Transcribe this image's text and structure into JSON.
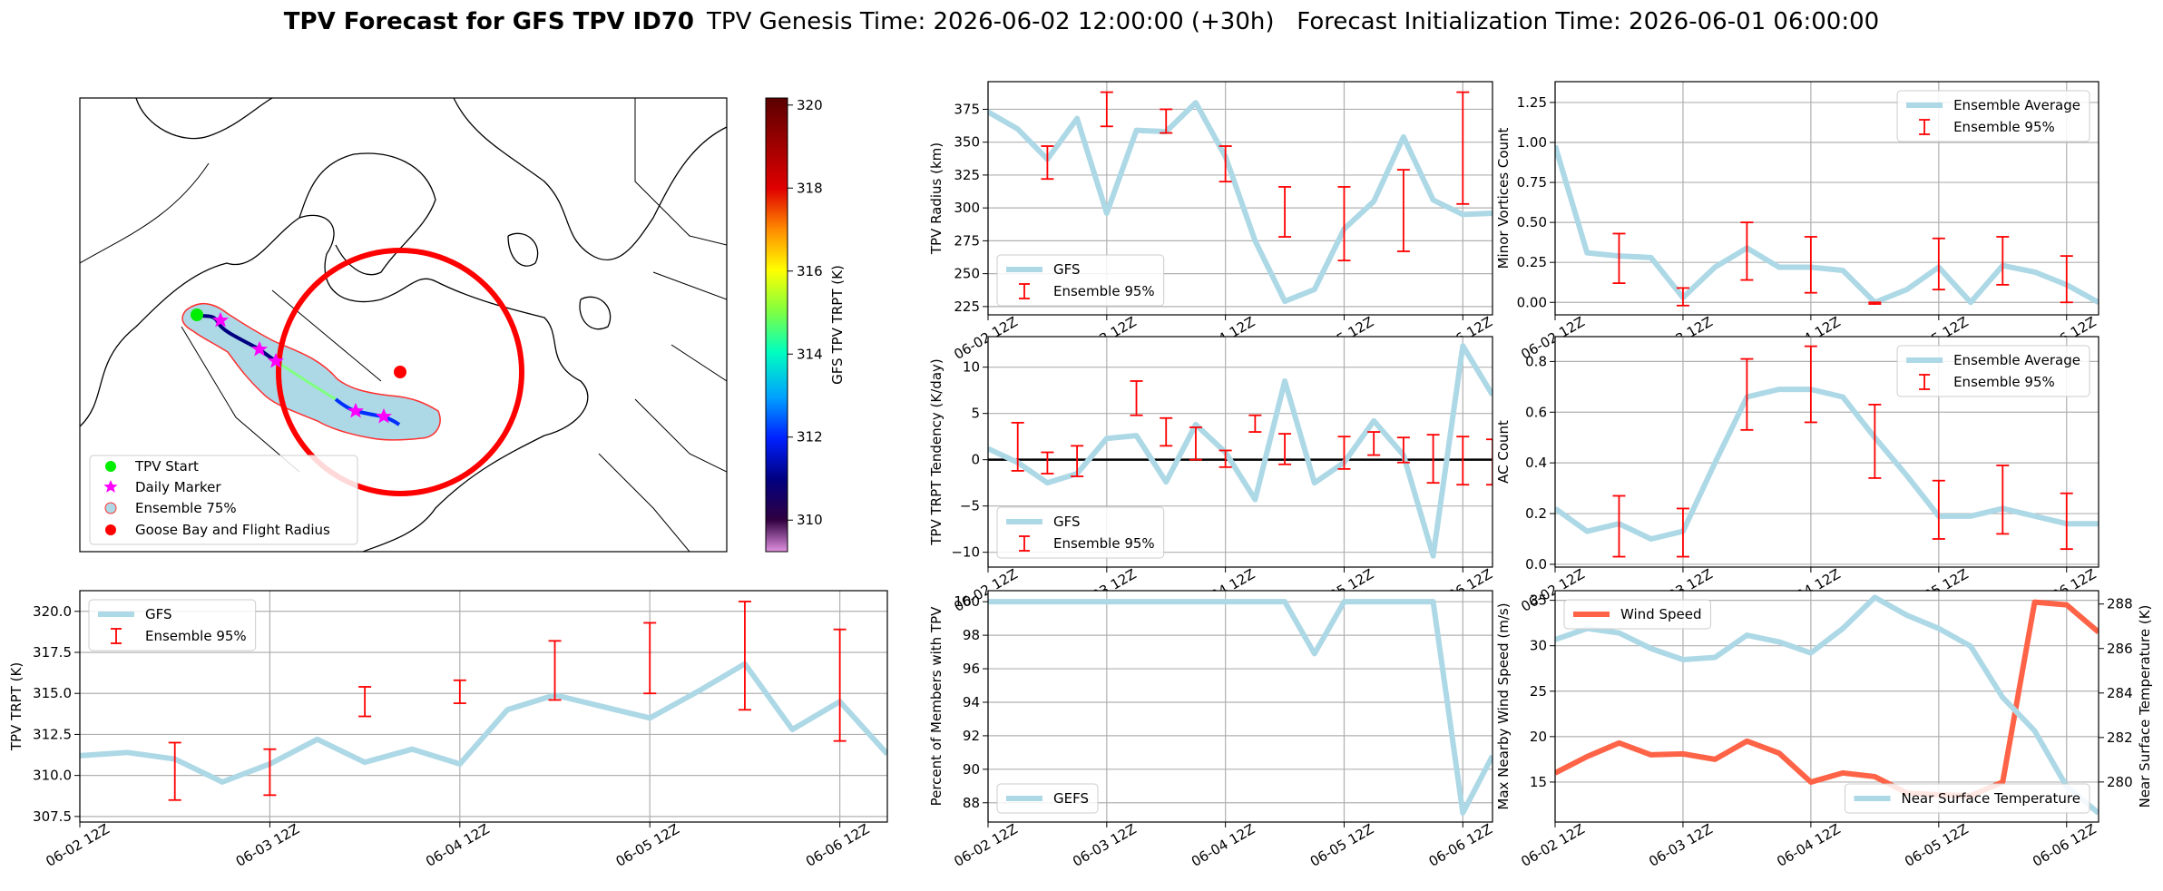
{
  "title": {
    "bold": "TPV Forecast for GFS TPV ID70",
    "rest": "TPV Genesis Time: 2026-06-02 12:00:00 (+30h)   Forecast Initialization Time: 2026-06-01 06:00:00"
  },
  "map": {
    "legend": [
      "TPV Start",
      "Daily Marker",
      "Ensemble 75%",
      "Goose Bay and Flight Radius"
    ],
    "colorbar": {
      "label": "GFS TPV TRPT (K)",
      "lim": [
        309.24,
        320.17
      ],
      "ticks": [
        310,
        312,
        314,
        316,
        318,
        320
      ]
    }
  },
  "chart_data": [
    {
      "type": "line",
      "ylabel": "TPV Radius (km)",
      "grid": true,
      "legend": "lower left",
      "x": [
        0,
        6,
        12,
        18,
        24,
        30,
        36,
        42,
        48,
        54,
        60,
        66,
        72,
        78,
        84,
        90,
        96,
        102
      ],
      "xlim": [
        0,
        102
      ],
      "xticks": [
        {
          "value": 0,
          "label": "06-02 12Z"
        },
        {
          "value": 24,
          "label": "06-03 12Z"
        },
        {
          "value": 48,
          "label": "06-04 12Z"
        },
        {
          "value": 72,
          "label": "06-05 12Z"
        },
        {
          "value": 96,
          "label": "06-06 12Z"
        }
      ],
      "ylim": [
        218.7,
        396
      ],
      "yticks": [
        225,
        250,
        275,
        300,
        325,
        350,
        375
      ],
      "series": [
        {
          "name": "GFS",
          "color": "#add8e6",
          "values": [
            373,
            360,
            337,
            368,
            296,
            359,
            358,
            380,
            339,
            275,
            229,
            238,
            284,
            305,
            354,
            306,
            295,
            296
          ]
        }
      ],
      "errorbars": {
        "name": "Ensemble 95%",
        "color": "#ff0000",
        "x": [
          12,
          24,
          36,
          48,
          60,
          72,
          84,
          96
        ],
        "low": [
          322,
          362,
          357,
          320,
          278,
          260,
          267,
          303
        ],
        "high": [
          347,
          388,
          375,
          347,
          316,
          316,
          329,
          388
        ]
      }
    },
    {
      "type": "line",
      "ylabel": "TPV TRPT Tendency (K/day)",
      "grid": true,
      "legend": "lower left",
      "hline": 0,
      "x": [
        0,
        6,
        12,
        18,
        24,
        30,
        36,
        42,
        48,
        54,
        60,
        66,
        72,
        78,
        84,
        90,
        96,
        102
      ],
      "xlim": [
        0,
        102
      ],
      "xticks": [
        {
          "value": 0,
          "label": "06-02 12Z"
        },
        {
          "value": 24,
          "label": "06-03 12Z"
        },
        {
          "value": 48,
          "label": "06-04 12Z"
        },
        {
          "value": 72,
          "label": "06-05 12Z"
        },
        {
          "value": 96,
          "label": "06-06 12Z"
        }
      ],
      "ylim": [
        -11.6,
        13.3
      ],
      "yticks": [
        {
          "value": -10,
          "label": "−10"
        },
        {
          "value": -5,
          "label": "−5"
        },
        0,
        5,
        10
      ],
      "series": [
        {
          "name": "GFS",
          "color": "#add8e6",
          "values": [
            1.2,
            -0.3,
            -2.5,
            -1.5,
            2.3,
            2.6,
            -2.4,
            3.8,
            0.8,
            -4.3,
            8.5,
            -2.5,
            -0.3,
            4.2,
            0.5,
            -10.4,
            12.3,
            7.0
          ]
        }
      ],
      "errorbars": {
        "name": "Ensemble 95%",
        "color": "#ff0000",
        "x": [
          6,
          12,
          18,
          30,
          36,
          42,
          48,
          54,
          60,
          72,
          78,
          84,
          90,
          96,
          102
        ],
        "low": [
          -1.2,
          -1.5,
          -1.8,
          4.8,
          1.5,
          0,
          -0.8,
          3.0,
          -0.5,
          -1.0,
          0.5,
          -0.3,
          -2.5,
          -2.7,
          -2.7
        ],
        "high": [
          4.0,
          0.8,
          1.5,
          8.5,
          4.5,
          3.5,
          1.0,
          4.8,
          2.8,
          2.5,
          3.0,
          2.4,
          2.7,
          2.5,
          2.2
        ]
      }
    },
    {
      "type": "line",
      "ylabel": "Percent of Members with TPV",
      "grid": true,
      "legend": "lower left",
      "x": [
        0,
        6,
        12,
        18,
        24,
        30,
        36,
        42,
        48,
        54,
        60,
        66,
        72,
        78,
        84,
        90,
        96,
        102
      ],
      "xlim": [
        0,
        102
      ],
      "xticks": [
        {
          "value": 0,
          "label": "06-02 12Z"
        },
        {
          "value": 24,
          "label": "06-03 12Z"
        },
        {
          "value": 48,
          "label": "06-04 12Z"
        },
        {
          "value": 72,
          "label": "06-05 12Z"
        },
        {
          "value": 96,
          "label": "06-06 12Z"
        }
      ],
      "ylim": [
        86.85,
        100.66
      ],
      "yticks": [
        88,
        90,
        92,
        94,
        96,
        98,
        100
      ],
      "series": [
        {
          "name": "GEFS",
          "color": "#add8e6",
          "values": [
            100,
            100,
            100,
            100,
            100,
            100,
            100,
            100,
            100,
            100,
            100,
            96.9,
            100,
            100,
            100,
            100,
            87.4,
            90.8
          ]
        }
      ]
    },
    {
      "type": "line",
      "ylabel": "Minor Vortices Count",
      "grid": true,
      "legend": "upper right",
      "x": [
        0,
        6,
        12,
        18,
        24,
        30,
        36,
        42,
        48,
        54,
        60,
        66,
        72,
        78,
        84,
        90,
        96,
        102
      ],
      "xlim": [
        0,
        102
      ],
      "xticks": [
        {
          "value": 0,
          "label": "06-02 12Z"
        },
        {
          "value": 24,
          "label": "06-03 12Z"
        },
        {
          "value": 48,
          "label": "06-04 12Z"
        },
        {
          "value": 72,
          "label": "06-05 12Z"
        },
        {
          "value": 96,
          "label": "06-06 12Z"
        }
      ],
      "ylim": [
        -0.078,
        1.38
      ],
      "yticks": [
        {
          "value": 0,
          "label": "0.00"
        },
        {
          "value": 0.25,
          "label": "0.25"
        },
        {
          "value": 0.5,
          "label": "0.50"
        },
        {
          "value": 0.75,
          "label": "0.75"
        },
        {
          "value": 1,
          "label": "1.00"
        },
        {
          "value": 1.25,
          "label": "1.25"
        }
      ],
      "series": [
        {
          "name": "Ensemble Average",
          "color": "#add8e6",
          "values": [
            0.98,
            0.31,
            0.29,
            0.28,
            0.03,
            0.22,
            0.34,
            0.22,
            0.22,
            0.2,
            0.0,
            0.08,
            0.22,
            0.0,
            0.23,
            0.19,
            0.11,
            0.0
          ]
        }
      ],
      "errorbars": {
        "name": "Ensemble 95%",
        "color": "#ff0000",
        "x": [
          12,
          24,
          36,
          48,
          60,
          72,
          84,
          96
        ],
        "low": [
          0.12,
          -0.02,
          0.14,
          0.06,
          -0.01,
          0.08,
          0.11,
          0.0
        ],
        "high": [
          0.43,
          0.09,
          0.5,
          0.41,
          0.0,
          0.4,
          0.41,
          0.29
        ]
      }
    },
    {
      "type": "line",
      "ylabel": "AC Count",
      "grid": true,
      "legend": "upper right",
      "x": [
        0,
        6,
        12,
        18,
        24,
        30,
        36,
        42,
        48,
        54,
        60,
        66,
        72,
        78,
        84,
        90,
        96,
        102
      ],
      "xlim": [
        0,
        102
      ],
      "xticks": [
        {
          "value": 0,
          "label": "06-02 12Z"
        },
        {
          "value": 24,
          "label": "06-03 12Z"
        },
        {
          "value": 48,
          "label": "06-04 12Z"
        },
        {
          "value": 72,
          "label": "06-05 12Z"
        },
        {
          "value": 96,
          "label": "06-06 12Z"
        }
      ],
      "ylim": [
        -0.011,
        0.898
      ],
      "yticks": [
        {
          "value": 0,
          "label": "0.0"
        },
        {
          "value": 0.2,
          "label": "0.2"
        },
        {
          "value": 0.4,
          "label": "0.4"
        },
        {
          "value": 0.6,
          "label": "0.6"
        },
        {
          "value": 0.8,
          "label": "0.8"
        }
      ],
      "series": [
        {
          "name": "Ensemble Average",
          "color": "#add8e6",
          "values": [
            0.22,
            0.13,
            0.16,
            0.1,
            0.13,
            0.4,
            0.66,
            0.69,
            0.69,
            0.66,
            0.5,
            0.35,
            0.19,
            0.19,
            0.22,
            0.19,
            0.16,
            0.16
          ]
        }
      ],
      "errorbars": {
        "name": "Ensemble 95%",
        "color": "#ff0000",
        "x": [
          12,
          24,
          36,
          48,
          60,
          72,
          84,
          96
        ],
        "low": [
          0.03,
          0.03,
          0.53,
          0.56,
          0.34,
          0.1,
          0.12,
          0.06
        ],
        "high": [
          0.27,
          0.22,
          0.81,
          0.86,
          0.63,
          0.33,
          0.39,
          0.28
        ]
      }
    },
    {
      "type": "line",
      "ylabel": "Max Nearby Wind Speed (m/s)",
      "y2label": "Near Surface Temperature (K)",
      "ylabel_color": "#ff6347",
      "y2label_color": "#4169e1",
      "grid": true,
      "legend": "upper left",
      "y2legend": "lower right",
      "x": [
        0,
        6,
        12,
        18,
        24,
        30,
        36,
        42,
        48,
        54,
        60,
        66,
        72,
        78,
        84,
        90,
        96,
        102
      ],
      "xlim": [
        0,
        102
      ],
      "xticks": [
        {
          "value": 0,
          "label": "06-02 12Z"
        },
        {
          "value": 24,
          "label": "06-03 12Z"
        },
        {
          "value": 48,
          "label": "06-04 12Z"
        },
        {
          "value": 72,
          "label": "06-05 12Z"
        },
        {
          "value": 96,
          "label": "06-06 12Z"
        }
      ],
      "ylim": [
        10.6,
        36.06
      ],
      "yticks": [
        15,
        20,
        25,
        30,
        35
      ],
      "y2lim": [
        278.2,
        288.6
      ],
      "y2ticks": [
        280,
        282,
        284,
        286,
        288
      ],
      "series": [
        {
          "name": "Wind Speed",
          "color": "#ff6347",
          "values": [
            16.0,
            17.8,
            19.3,
            18.0,
            18.1,
            17.5,
            19.5,
            18.2,
            15.0,
            16.0,
            15.6,
            13.8,
            13.6,
            13.5,
            15.0,
            34.8,
            34.5,
            31.5
          ]
        },
        {
          "name": "Near Surface Temperature",
          "color": "#add8e6",
          "axis": "y2",
          "values": [
            286.4,
            286.9,
            286.7,
            286.0,
            285.5,
            285.6,
            286.6,
            286.3,
            285.8,
            286.9,
            288.3,
            287.5,
            286.9,
            286.1,
            283.8,
            282.3,
            279.8,
            278.6
          ]
        }
      ]
    },
    {
      "type": "line",
      "ylabel": "TPV TRPT (K)",
      "grid": true,
      "legend": "upper left",
      "x": [
        0,
        6,
        12,
        18,
        24,
        30,
        36,
        42,
        48,
        54,
        60,
        66,
        72,
        78,
        84,
        90,
        96,
        102
      ],
      "xlim": [
        0,
        102
      ],
      "xticks": [
        {
          "value": 0,
          "label": "06-02 12Z"
        },
        {
          "value": 24,
          "label": "06-03 12Z"
        },
        {
          "value": 48,
          "label": "06-04 12Z"
        },
        {
          "value": 72,
          "label": "06-05 12Z"
        },
        {
          "value": 96,
          "label": "06-06 12Z"
        }
      ],
      "ylim": [
        307.16,
        321.26
      ],
      "yticks": [
        307.5,
        {
          "value": 310,
          "label": "310.0"
        },
        312.5,
        {
          "value": 315,
          "label": "315.0"
        },
        317.5,
        {
          "value": 320,
          "label": "320.0"
        }
      ],
      "series": [
        {
          "name": "GFS",
          "color": "#add8e6",
          "values": [
            311.2,
            311.4,
            311.0,
            309.6,
            310.7,
            312.2,
            310.8,
            311.6,
            310.7,
            314.0,
            314.9,
            314.2,
            313.5,
            315.1,
            316.8,
            312.8,
            314.5,
            311.3
          ]
        }
      ],
      "errorbars": {
        "name": "Ensemble 95%",
        "color": "#ff0000",
        "x": [
          12,
          24,
          36,
          48,
          60,
          72,
          84,
          96
        ],
        "low": [
          308.5,
          308.8,
          313.6,
          314.4,
          314.6,
          315.0,
          314.0,
          312.1
        ],
        "high": [
          312.0,
          311.6,
          315.4,
          315.8,
          318.2,
          319.3,
          320.6,
          318.9
        ]
      }
    }
  ]
}
